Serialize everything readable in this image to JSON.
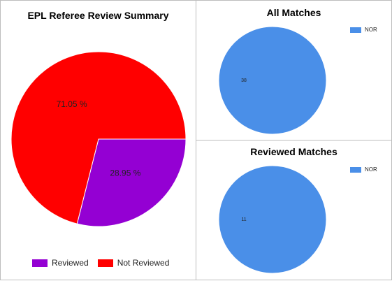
{
  "chart_data": [
    {
      "type": "pie",
      "title": "EPL Referee Review Summary",
      "slices": [
        {
          "label": "Reviewed",
          "value": 28.95,
          "display": "28.95 %",
          "color": "#9400d3"
        },
        {
          "label": "Not Reviewed",
          "value": 71.05,
          "display": "71.05 %",
          "color": "#ff0000"
        }
      ],
      "legend_position": "bottom"
    },
    {
      "type": "pie",
      "title": "All Matches",
      "slices": [
        {
          "label": "NOR",
          "value": 38,
          "display": "38",
          "color": "#4a8fe8"
        }
      ],
      "legend_position": "top-right"
    },
    {
      "type": "pie",
      "title": "Reviewed Matches",
      "slices": [
        {
          "label": "NOR",
          "value": 11,
          "display": "11",
          "color": "#4a8fe8"
        }
      ],
      "legend_position": "top-right"
    }
  ]
}
